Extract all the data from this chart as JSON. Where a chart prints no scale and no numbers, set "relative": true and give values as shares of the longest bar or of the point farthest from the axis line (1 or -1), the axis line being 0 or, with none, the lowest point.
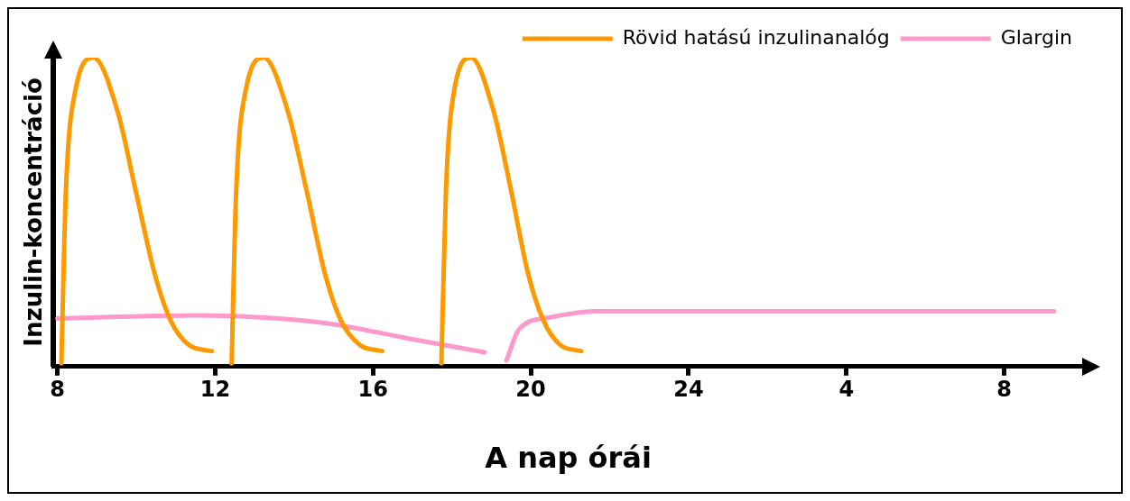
{
  "chart_data": {
    "type": "line",
    "relative": true,
    "xlabel": "A nap órái",
    "ylabel": "Inzulin-koncentráció",
    "xlim": [
      "--01-01T07:54",
      "--01-02T10:00"
    ],
    "xticks": [
      {
        "value": "--01-01T08:00",
        "label": "8"
      },
      {
        "value": "--01-01T12:00",
        "label": "12"
      },
      {
        "value": "--01-01T16:00",
        "label": "16"
      },
      {
        "value": "--01-01T20:00",
        "label": "20"
      },
      {
        "value": "--01-02T00:00",
        "label": "24"
      },
      {
        "value": "--01-02T04:00",
        "label": "4"
      },
      {
        "value": "--01-02T08:00",
        "label": "8"
      }
    ],
    "grid": false,
    "legend": "top right",
    "line_style": "solid",
    "series": [
      {
        "name": "Rövid hatású inzulinanalóg",
        "color": "#ff9900",
        "x": [
          "--01-01T08:06",
          "--01-01T08:13",
          "--01-01T08:28",
          "--01-01T08:55",
          "--01-01T09:31",
          "--01-01T09:59",
          "--01-01T10:28",
          "--01-01T10:52",
          "--01-01T11:20",
          "--01-01T11:55",
          "--01-01T12:12",
          "--01-01T12:25",
          "--01-01T12:32",
          "--01-01T12:47",
          "--01-01T13:14",
          "--01-01T13:50",
          "--01-01T14:19",
          "--01-01T14:47",
          "--01-01T15:11",
          "--01-01T15:40",
          "--01-01T16:14",
          "--01-01T17:00",
          "--01-01T17:44",
          "--01-01T17:51",
          "--01-01T18:04",
          "--01-01T18:29",
          "--01-01T19:03",
          "--01-01T19:30",
          "--01-01T19:56",
          "--01-01T20:19",
          "--01-01T20:45",
          "--01-01T21:17"
        ],
        "values": [
          0.01,
          0.57,
          0.9,
          1.0,
          0.83,
          0.57,
          0.3,
          0.15,
          0.07,
          0.05,
          null,
          0.01,
          0.57,
          0.9,
          1.0,
          0.83,
          0.57,
          0.3,
          0.15,
          0.07,
          0.05,
          null,
          0.01,
          0.57,
          0.9,
          1.0,
          0.83,
          0.57,
          0.3,
          0.15,
          0.07,
          0.05
        ]
      },
      {
        "name": "Glargin",
        "color": "#ff99cc",
        "x": [
          "--01-01T08:00",
          "--01-01T11:32",
          "--01-01T13:10",
          "--01-01T14:54",
          "--01-01T16:49",
          "--01-01T18:50",
          "--01-01T19:06",
          "--01-01T19:23",
          "--01-01T19:42",
          "--01-01T20:29",
          "--01-01T21:38",
          "--01-01T23:33",
          "--01-02T09:16"
        ],
        "values": [
          0.156,
          0.166,
          0.159,
          0.139,
          0.093,
          0.046,
          null,
          0.02,
          0.12,
          0.159,
          0.179,
          0.179,
          0.179
        ]
      }
    ]
  }
}
